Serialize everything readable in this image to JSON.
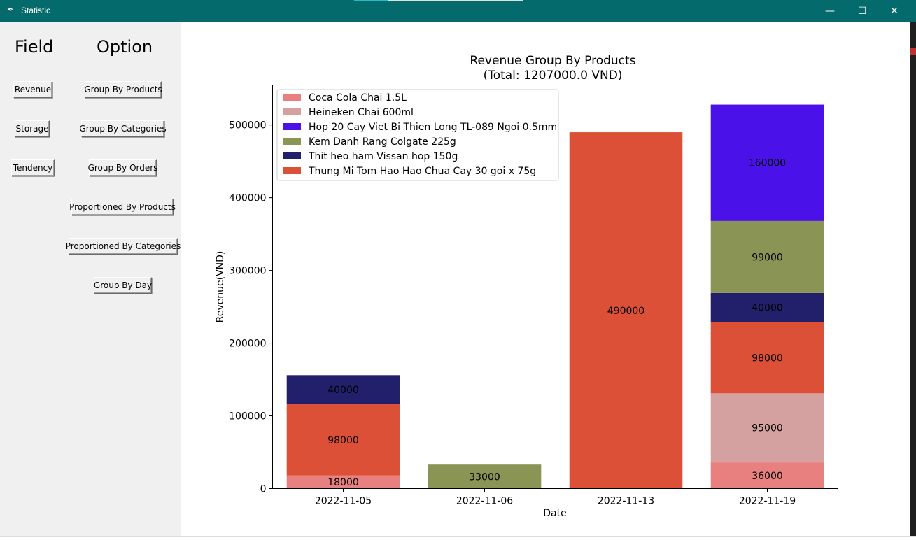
{
  "window": {
    "title": "Statistic",
    "minimize_glyph": "—",
    "maximize_glyph": "☐",
    "close_glyph": "✕",
    "app_icon": "feather-icon",
    "titlebar_color": "#046a6c"
  },
  "sidebar": {
    "field_header": "Field",
    "option_header": "Option",
    "field_buttons": [
      {
        "label": "Revenue"
      },
      {
        "label": "Storage"
      },
      {
        "label": "Tendency"
      }
    ],
    "option_buttons": [
      {
        "label": "Group By Products"
      },
      {
        "label": "Group By Categories"
      },
      {
        "label": "Group By Orders"
      },
      {
        "label": "Proportioned By Products"
      },
      {
        "label": "Proportioned By Categories"
      },
      {
        "label": "Group By Day"
      }
    ]
  },
  "chart_data": {
    "type": "bar",
    "stacked": true,
    "title": "Revenue Group By Products",
    "subtitle": "(Total: 1207000.0 VND)",
    "xlabel": "Date",
    "ylabel": "Revenue(VND)",
    "ylim": [
      0,
      555000
    ],
    "yticks": [
      0,
      100000,
      200000,
      300000,
      400000,
      500000
    ],
    "legend_position": "top-left",
    "categories": [
      "2022-11-05",
      "2022-11-06",
      "2022-11-13",
      "2022-11-19"
    ],
    "series": [
      {
        "name": "Coca Cola Chai 1.5L",
        "color": "#e88080",
        "values": [
          18000,
          0,
          0,
          36000
        ]
      },
      {
        "name": "Heineken Chai 600ml",
        "color": "#d4a0a0",
        "values": [
          0,
          0,
          0,
          95000
        ]
      },
      {
        "name": "Thung Mi Tom Hao Hao Chua Cay 30 goi x 75g",
        "color": "#dc5037",
        "values": [
          98000,
          0,
          490000,
          98000
        ]
      },
      {
        "name": "Thit heo ham Vissan hop 150g",
        "color": "#22206a",
        "values": [
          40000,
          0,
          0,
          40000
        ]
      },
      {
        "name": "Kem Danh Rang Colgate 225g",
        "color": "#8a9455",
        "values": [
          0,
          33000,
          0,
          99000
        ]
      },
      {
        "name": "Hop 20 Cay Viet Bi Thien Long TL-089 Ngoi 0.5mm",
        "color": "#4a12e8",
        "values": [
          0,
          0,
          0,
          160000
        ]
      }
    ],
    "legend_order": [
      "Coca Cola Chai 1.5L",
      "Heineken Chai 600ml",
      "Hop 20 Cay Viet Bi Thien Long TL-089 Ngoi 0.5mm",
      "Kem Danh Rang Colgate 225g",
      "Thit heo ham Vissan hop 150g",
      "Thung Mi Tom Hao Hao Chua Cay 30 goi x 75g"
    ]
  }
}
